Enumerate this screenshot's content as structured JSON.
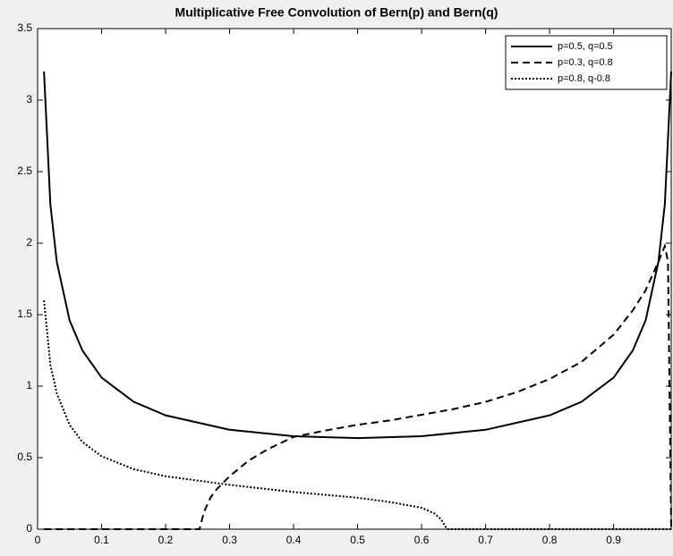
{
  "chart_data": {
    "type": "line",
    "title": "Multiplicative Free Convolution of Bern(p) and Bern(q)",
    "xlim": [
      0,
      0.99
    ],
    "xticks": [
      0,
      0.1,
      0.2,
      0.3,
      0.4,
      0.5,
      0.6,
      0.7,
      0.8,
      0.9
    ],
    "ylim": [
      0,
      3.5
    ],
    "yticks": [
      0,
      0.5,
      1,
      1.5,
      2,
      2.5,
      3,
      3.5
    ],
    "legend": "upper-right",
    "series": [
      {
        "name": "p=0.5, q=0.5",
        "color": "#000000",
        "line_style": "solid",
        "x": [
          0.01,
          0.02,
          0.03,
          0.05,
          0.07,
          0.1,
          0.15,
          0.2,
          0.3,
          0.4,
          0.5,
          0.6,
          0.7,
          0.8,
          0.85,
          0.9,
          0.93,
          0.95,
          0.97,
          0.98,
          0.99
        ],
        "values": [
          3.2,
          2.27,
          1.87,
          1.46,
          1.25,
          1.06,
          0.891,
          0.796,
          0.695,
          0.65,
          0.637,
          0.65,
          0.695,
          0.796,
          0.891,
          1.06,
          1.25,
          1.46,
          1.87,
          2.27,
          3.2
        ]
      },
      {
        "name": "p=0.3, q=0.8",
        "color": "#000000",
        "line_style": "dashed",
        "x": [
          0.01,
          0.253,
          0.26,
          0.27,
          0.28,
          0.3,
          0.33,
          0.36,
          0.4,
          0.45,
          0.5,
          0.55,
          0.6,
          0.65,
          0.7,
          0.75,
          0.8,
          0.85,
          0.9,
          0.93,
          0.95,
          0.97,
          0.98,
          0.985,
          0.99
        ],
        "values": [
          0,
          0,
          0.12,
          0.22,
          0.28,
          0.37,
          0.48,
          0.56,
          0.645,
          0.69,
          0.73,
          0.76,
          0.8,
          0.84,
          0.89,
          0.96,
          1.05,
          1.17,
          1.36,
          1.53,
          1.67,
          1.87,
          1.98,
          1.87,
          0
        ]
      },
      {
        "name": "p=0.8, q-0.8",
        "color": "#000000",
        "line_style": "dotted",
        "x": [
          0.01,
          0.02,
          0.03,
          0.05,
          0.07,
          0.1,
          0.15,
          0.2,
          0.3,
          0.4,
          0.5,
          0.55,
          0.6,
          0.62,
          0.63,
          0.64,
          0.99
        ],
        "values": [
          1.6,
          1.15,
          0.95,
          0.73,
          0.61,
          0.51,
          0.42,
          0.37,
          0.31,
          0.26,
          0.22,
          0.19,
          0.15,
          0.11,
          0.07,
          0,
          0
        ]
      }
    ]
  }
}
